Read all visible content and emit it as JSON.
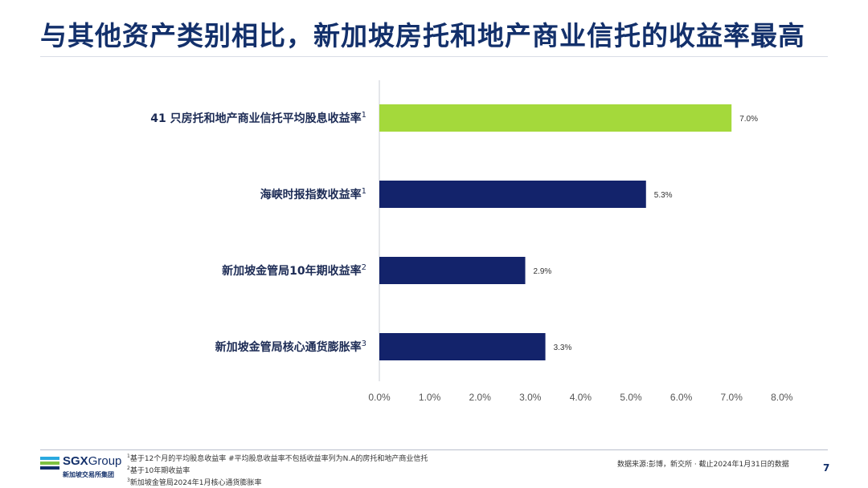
{
  "title": "与其他资产类别相比，新加坡房托和地产商业信托的收益率最高",
  "chart_data": {
    "type": "bar",
    "orientation": "horizontal",
    "categories": [
      "41 只房托和地产商业信托平均股息收益率",
      "海峡时报指数收益率",
      "新加坡金管局10年期收益率",
      "新加坡金管局核心通货膨胀率"
    ],
    "category_superscripts": [
      "1",
      "1",
      "2",
      "3"
    ],
    "values": [
      7.0,
      5.3,
      2.9,
      3.3
    ],
    "value_labels": [
      "7.0%",
      "5.3%",
      "2.9%",
      "3.3%"
    ],
    "bar_colors": [
      "#a4d93b",
      "#13236b",
      "#13236b",
      "#13236b"
    ],
    "xlim": [
      0,
      8
    ],
    "ticks": [
      0,
      1,
      2,
      3,
      4,
      5,
      6,
      7,
      8
    ],
    "tick_labels": [
      "0.0%",
      "1.0%",
      "2.0%",
      "3.0%",
      "4.0%",
      "5.0%",
      "6.0%",
      "7.0%",
      "8.0%"
    ],
    "grid": false,
    "legend": "none"
  },
  "footer": {
    "logo_main": "SGX",
    "logo_group": "Group",
    "logo_sub": "新加坡交易所集团",
    "logo_colors": [
      "#2aa9e0",
      "#7fc242",
      "#13306b"
    ],
    "footnotes": [
      {
        "sup": "1",
        "text": "基于12个月的平均股息收益率  #平均股息收益率不包括收益率列为N.A的房托和地产商业信托"
      },
      {
        "sup": "2",
        "text": "基于10年期收益率"
      },
      {
        "sup": "3",
        "text": "新加坡金管局2024年1月核心通货膨胀率"
      }
    ],
    "source": "数据来源:彭博，新交所 · 截止2024年1月31日的数据",
    "page_number": "7"
  }
}
